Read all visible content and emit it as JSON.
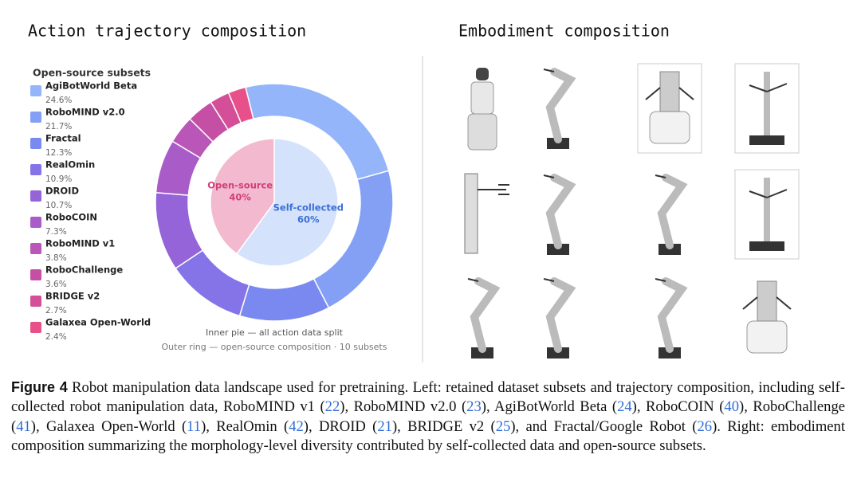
{
  "chart_data": {
    "type": "pie",
    "title": "Action trajectory composition",
    "legend_title": "Open-source subsets",
    "inner": {
      "categories": [
        "Self-collected",
        "Open-source"
      ],
      "values": [
        60,
        40
      ],
      "value_labels": [
        "60%",
        "40%"
      ],
      "colors": [
        "#d5e2fc",
        "#f3b9cf"
      ],
      "label_colors": [
        "#3b6fd4",
        "#d23f78"
      ]
    },
    "outer": {
      "categories": [
        "AgiBotWorld Beta",
        "RoboMIND v2.0",
        "Fractal",
        "RealOmin",
        "DROID",
        "RoboCOIN",
        "RoboMIND v1",
        "RoboChallenge",
        "BRIDGE v2",
        "Galaxea Open-World"
      ],
      "values": [
        24.6,
        21.7,
        12.3,
        10.9,
        10.7,
        7.3,
        3.8,
        3.6,
        2.7,
        2.4
      ],
      "value_labels": [
        "24.6%",
        "21.7%",
        "12.3%",
        "10.9%",
        "10.7%",
        "7.3%",
        "3.8%",
        "3.6%",
        "2.7%",
        "2.4%"
      ],
      "colors": [
        "#94b5f9",
        "#83a0f5",
        "#7a89f0",
        "#8574e8",
        "#9464d8",
        "#a95bc8",
        "#b956b8",
        "#c64fa6",
        "#d44e98",
        "#e8508a"
      ]
    },
    "notes": [
      "Inner pie — all action data split",
      "Outer ring — open-source composition · 10 subsets"
    ]
  },
  "embodiment": {
    "title": "Embodiment composition"
  },
  "caption": {
    "label": "Figure 4",
    "parts": [
      " Robot manipulation data landscape used for pretraining. Left: retained dataset subsets and trajectory composition, including self-collected robot manipulation data, RoboMIND v1 (",
      "22",
      "), RoboMIND v2.0 (",
      "23",
      "), AgiBotWorld Beta (",
      "24",
      "), RoboCOIN (",
      "40",
      "), RoboChallenge (",
      "41",
      "), Galaxea Open-World (",
      "11",
      "), RealOmin (",
      "42",
      "), DROID (",
      "21",
      "), BRIDGE v2 (",
      "25",
      "), and Fractal/Google Robot (",
      "26",
      "). Right: embodiment composition summarizing the morphology-level diversity contributed by self-collected data and open-source subsets."
    ]
  }
}
